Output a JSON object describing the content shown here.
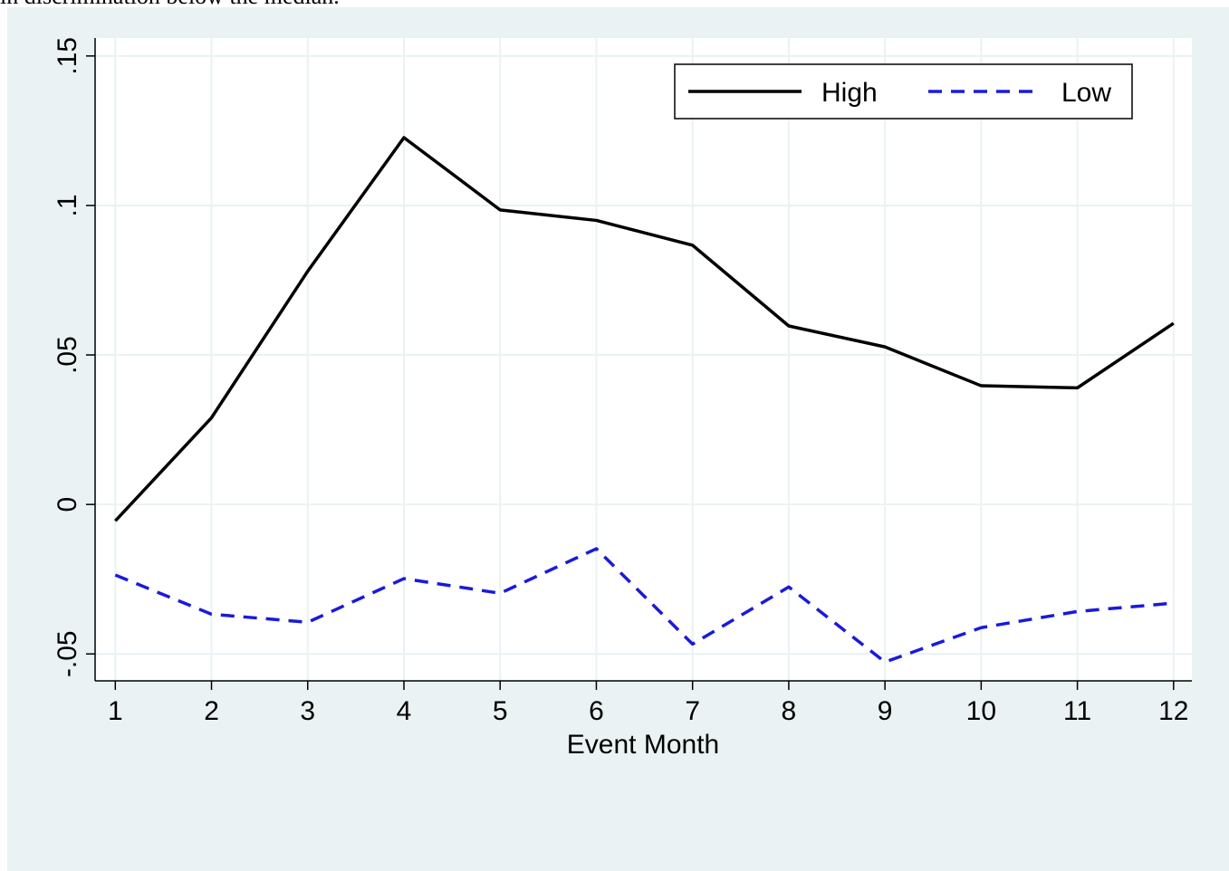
{
  "caption": "in discrimination below the median.",
  "chart_data": {
    "type": "line",
    "x_label": "Event Month",
    "x": [
      1,
      2,
      3,
      4,
      5,
      6,
      7,
      8,
      9,
      10,
      11,
      12
    ],
    "xlim": [
      0.79,
      12.19
    ],
    "xticks": [
      1,
      2,
      3,
      4,
      5,
      6,
      7,
      8,
      9,
      10,
      11,
      12
    ],
    "ylim": [
      -0.059,
      0.156
    ],
    "yticks": [
      {
        "value": -0.05,
        "label": "-.05"
      },
      0,
      {
        "value": 0.05,
        "label": ".05"
      },
      {
        "value": 0.1,
        "label": ".1"
      },
      {
        "value": 0.15,
        "label": ".15"
      }
    ],
    "grid": true,
    "legend": "top-right",
    "series": [
      {
        "name": "High",
        "color": "#000000",
        "dash": "solid",
        "values": [
          -0.0055,
          0.029,
          0.078,
          0.1227,
          0.0985,
          0.095,
          0.0867,
          0.0597,
          0.0527,
          0.0397,
          0.039,
          0.0606
        ]
      },
      {
        "name": "Low",
        "color": "#1a1adb",
        "dash": "dashed",
        "values": [
          -0.0236,
          -0.0367,
          -0.0394,
          -0.0248,
          -0.0297,
          -0.0148,
          -0.0467,
          -0.0276,
          -0.0527,
          -0.0412,
          -0.0358,
          -0.033
        ]
      }
    ]
  }
}
